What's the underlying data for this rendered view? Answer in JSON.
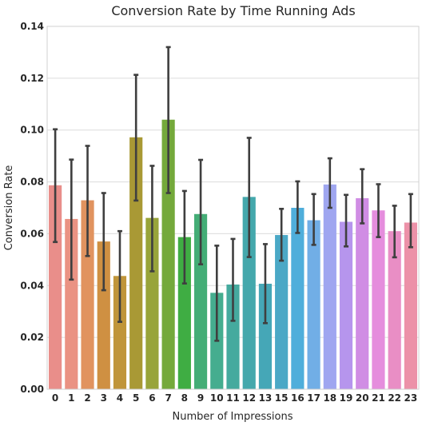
{
  "chart_data": {
    "type": "bar",
    "title": "Conversion Rate by Time Running Ads",
    "xlabel": "Number of Impressions",
    "ylabel": "Conversion Rate",
    "ylim": [
      0,
      0.14
    ],
    "yticks": [
      "0.00",
      "0.02",
      "0.04",
      "0.06",
      "0.08",
      "0.10",
      "0.12",
      "0.14"
    ],
    "grid": true,
    "categories": [
      "0",
      "1",
      "2",
      "3",
      "4",
      "5",
      "6",
      "7",
      "8",
      "9",
      "10",
      "11",
      "12",
      "13",
      "15",
      "16",
      "17",
      "18",
      "19",
      "20",
      "21",
      "22",
      "23"
    ],
    "values": [
      0.0787,
      0.0657,
      0.0729,
      0.057,
      0.0437,
      0.0972,
      0.0661,
      0.104,
      0.0587,
      0.0676,
      0.0372,
      0.0404,
      0.0742,
      0.0407,
      0.0595,
      0.07,
      0.0652,
      0.079,
      0.0646,
      0.0737,
      0.069,
      0.061,
      0.0643
    ],
    "err_low": [
      0.0568,
      0.0423,
      0.0514,
      0.0382,
      0.026,
      0.0728,
      0.0455,
      0.0757,
      0.0408,
      0.0482,
      0.0187,
      0.0264,
      0.051,
      0.0255,
      0.0496,
      0.0603,
      0.0557,
      0.07,
      0.0551,
      0.064,
      0.0587,
      0.0509,
      0.0548
    ],
    "err_high": [
      0.1003,
      0.0886,
      0.0939,
      0.0757,
      0.061,
      0.1213,
      0.0862,
      0.132,
      0.0765,
      0.0885,
      0.0554,
      0.058,
      0.097,
      0.056,
      0.0696,
      0.0802,
      0.0753,
      0.0891,
      0.075,
      0.0849,
      0.0791,
      0.0708,
      0.0753
    ],
    "colors": [
      "#e98e8a",
      "#ea9283",
      "#e1935f",
      "#cf9042",
      "#c0953a",
      "#a99935",
      "#98a43a",
      "#74a93b",
      "#3fad43",
      "#44ad76",
      "#45ad8f",
      "#45aa9e",
      "#44a8ac",
      "#45a7b7",
      "#4ba8c6",
      "#4faedb",
      "#71aee6",
      "#9fa6f0",
      "#b695ed",
      "#d08de4",
      "#e58ddd",
      "#e98ec5",
      "#ec91a8"
    ]
  }
}
